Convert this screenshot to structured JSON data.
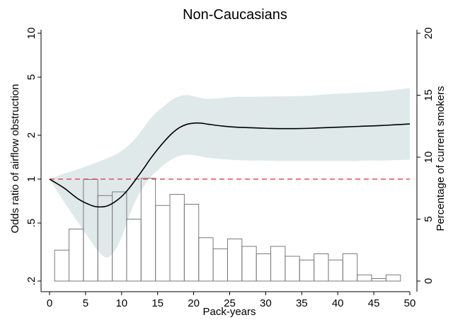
{
  "chart_data": {
    "type": "line",
    "title": "Non-Caucasians",
    "xlabel": "Pack-years",
    "ylabel": "Odds ratio of airflow obstruction",
    "y2label": "Percentage of current smokers",
    "xlim": [
      0,
      50
    ],
    "ylim": [
      0.2,
      10
    ],
    "yscale": "log",
    "y2lim": [
      0,
      20
    ],
    "xticks": [
      "0",
      "5",
      "10",
      "15",
      "20",
      "25",
      "30",
      "35",
      "40",
      "45",
      "50"
    ],
    "yticks": [
      {
        "value": 0.2,
        "label": ".2"
      },
      {
        "value": 0.5,
        "label": ".5"
      },
      {
        "value": 1,
        "label": "1"
      },
      {
        "value": 2,
        "label": "2"
      },
      {
        "value": 5,
        "label": "5"
      },
      {
        "value": 10,
        "label": "10"
      }
    ],
    "y2ticks": [
      "0",
      "5",
      "10",
      "15",
      "20"
    ],
    "reference_line": {
      "y": 1,
      "color": "#e05050",
      "style": "dashed"
    },
    "band_color": "#dfe9ea",
    "line_color": "#000000",
    "odds_ratio_curve": {
      "x": [
        0,
        2,
        4,
        6,
        7,
        8,
        9,
        10,
        11,
        12,
        13,
        14,
        15,
        16,
        17,
        18,
        19,
        20,
        21,
        22,
        24,
        26,
        28,
        30,
        32,
        34,
        36,
        38,
        40,
        42,
        44,
        46,
        48,
        50
      ],
      "y": [
        1.0,
        0.87,
        0.73,
        0.655,
        0.645,
        0.655,
        0.695,
        0.76,
        0.86,
        1.0,
        1.17,
        1.38,
        1.6,
        1.83,
        2.06,
        2.25,
        2.37,
        2.42,
        2.42,
        2.38,
        2.31,
        2.27,
        2.25,
        2.23,
        2.22,
        2.22,
        2.23,
        2.25,
        2.27,
        2.29,
        2.31,
        2.33,
        2.36,
        2.39
      ]
    },
    "confidence_band": {
      "x": [
        0,
        2,
        4,
        6,
        7,
        8,
        9,
        10,
        11,
        12,
        13,
        14,
        15,
        16,
        17,
        18,
        19,
        20,
        21,
        22,
        24,
        26,
        28,
        30,
        32,
        34,
        36,
        38,
        40,
        42,
        44,
        46,
        48,
        50
      ],
      "lower": [
        1.0,
        0.7,
        0.5,
        0.36,
        0.31,
        0.29,
        0.32,
        0.4,
        0.55,
        0.72,
        0.88,
        1.03,
        1.15,
        1.27,
        1.37,
        1.44,
        1.47,
        1.46,
        1.43,
        1.4,
        1.37,
        1.35,
        1.34,
        1.34,
        1.33,
        1.33,
        1.33,
        1.33,
        1.33,
        1.33,
        1.34,
        1.34,
        1.35,
        1.36
      ],
      "upper": [
        1.0,
        1.09,
        1.17,
        1.27,
        1.33,
        1.39,
        1.46,
        1.56,
        1.71,
        1.92,
        2.23,
        2.6,
        2.92,
        3.2,
        3.5,
        3.7,
        3.77,
        3.7,
        3.6,
        3.55,
        3.6,
        3.67,
        3.67,
        3.69,
        3.7,
        3.71,
        3.73,
        3.8,
        3.85,
        3.9,
        3.95,
        4.0,
        4.1,
        4.2
      ]
    },
    "histogram": {
      "bin_width": 2,
      "bin_starts": [
        0,
        2,
        4,
        6,
        8,
        10,
        12,
        14,
        16,
        18,
        20,
        22,
        24,
        26,
        28,
        30,
        32,
        34,
        36,
        38,
        40,
        42,
        44,
        46,
        48
      ],
      "percent": [
        2.5,
        4.2,
        8.2,
        6.9,
        7.2,
        5.0,
        8.3,
        6.1,
        7.0,
        6.2,
        3.5,
        2.6,
        3.4,
        2.8,
        2.2,
        2.8,
        2.0,
        1.7,
        2.2,
        1.7,
        2.2,
        0.5,
        0.2,
        0.5,
        0
      ]
    }
  }
}
